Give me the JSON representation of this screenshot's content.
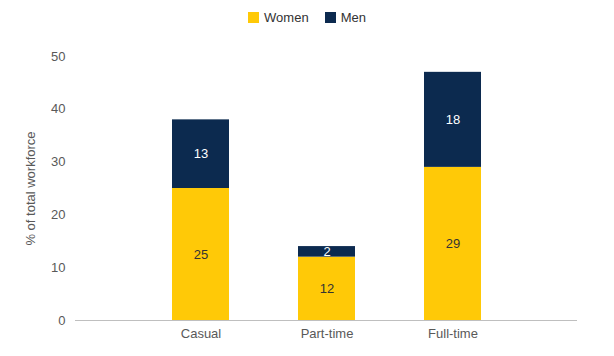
{
  "chart_data": {
    "type": "bar",
    "stacked": true,
    "data_labels": true,
    "categories": [
      "Casual",
      "Part-time",
      "Full-time"
    ],
    "series": [
      {
        "name": "Women",
        "color": "#FFC907",
        "values": [
          25,
          12,
          29
        ]
      },
      {
        "name": "Men",
        "color": "#0C2A4F",
        "values": [
          13,
          2,
          18
        ]
      }
    ],
    "ylabel": "% of total workforce",
    "ylim": [
      0,
      50
    ],
    "yticks": [
      0,
      10,
      20,
      30,
      40,
      50
    ],
    "grid": false,
    "legend": "top"
  }
}
